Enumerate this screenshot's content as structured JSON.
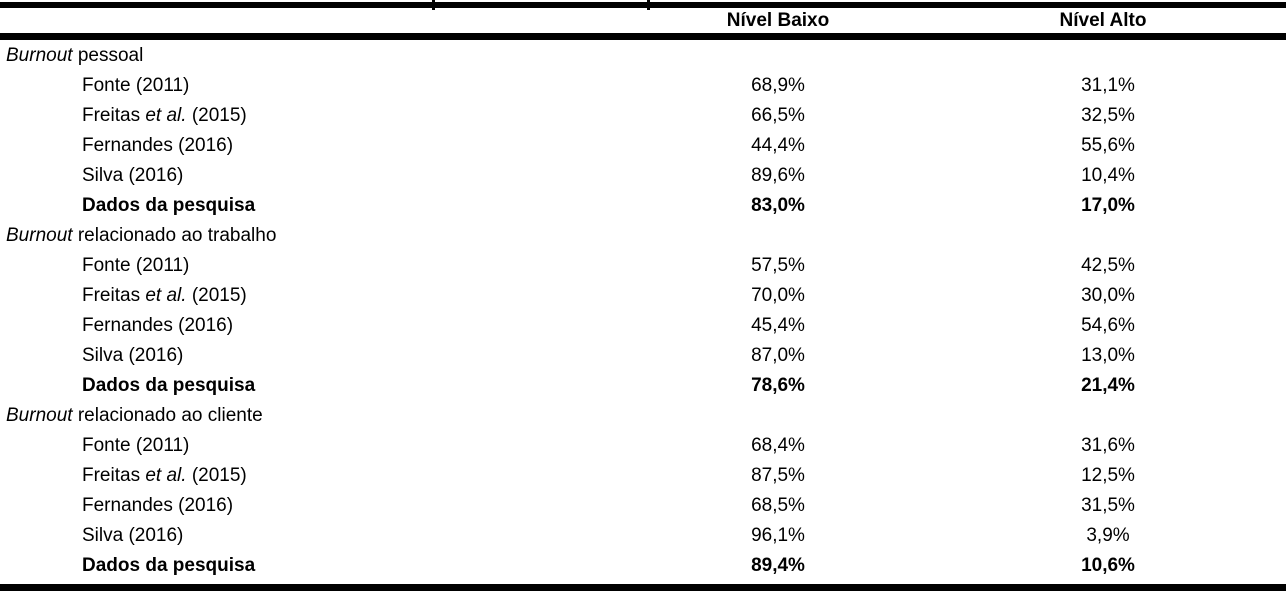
{
  "header": {
    "col_baixo": "Nível Baixo",
    "col_alto": "Nível Alto"
  },
  "sections": [
    {
      "title": {
        "italic": "Burnout",
        "rest": " pessoal"
      },
      "rows": [
        {
          "label": {
            "pre": "Fonte (2011)",
            "italic": "",
            "post": ""
          },
          "baixo": "68,9%",
          "alto": "31,1%"
        },
        {
          "label": {
            "pre": "Freitas ",
            "italic": "et al.",
            "post": " (2015)"
          },
          "baixo": "66,5%",
          "alto": "32,5%"
        },
        {
          "label": {
            "pre": "Fernandes (2016)",
            "italic": "",
            "post": ""
          },
          "baixo": "44,4%",
          "alto": "55,6%"
        },
        {
          "label": {
            "pre": "Silva (2016)",
            "italic": "",
            "post": ""
          },
          "baixo": "89,6%",
          "alto": "10,4%"
        },
        {
          "label": {
            "pre": "Dados da pesquisa",
            "italic": "",
            "post": ""
          },
          "baixo": "83,0%",
          "alto": "17,0%"
        }
      ]
    },
    {
      "title": {
        "italic": "Burnout",
        "rest": " relacionado ao trabalho"
      },
      "rows": [
        {
          "label": {
            "pre": "Fonte (2011)",
            "italic": "",
            "post": ""
          },
          "baixo": "57,5%",
          "alto": "42,5%"
        },
        {
          "label": {
            "pre": "Freitas ",
            "italic": "et al.",
            "post": " (2015)"
          },
          "baixo": "70,0%",
          "alto": "30,0%"
        },
        {
          "label": {
            "pre": "Fernandes (2016)",
            "italic": "",
            "post": ""
          },
          "baixo": "45,4%",
          "alto": "54,6%"
        },
        {
          "label": {
            "pre": "Silva (2016)",
            "italic": "",
            "post": ""
          },
          "baixo": "87,0%",
          "alto": "13,0%"
        },
        {
          "label": {
            "pre": "Dados da pesquisa",
            "italic": "",
            "post": ""
          },
          "baixo": "78,6%",
          "alto": "21,4%"
        }
      ]
    },
    {
      "title": {
        "italic": "Burnout",
        "rest": " relacionado ao cliente"
      },
      "rows": [
        {
          "label": {
            "pre": "Fonte (2011)",
            "italic": "",
            "post": ""
          },
          "baixo": "68,4%",
          "alto": "31,6%"
        },
        {
          "label": {
            "pre": "Freitas ",
            "italic": "et al.",
            "post": " (2015)"
          },
          "baixo": "87,5%",
          "alto": "12,5%"
        },
        {
          "label": {
            "pre": "Fernandes (2016)",
            "italic": "",
            "post": ""
          },
          "baixo": "68,5%",
          "alto": "31,5%"
        },
        {
          "label": {
            "pre": "Silva (2016)",
            "italic": "",
            "post": ""
          },
          "baixo": "96,1%",
          "alto": "3,9%"
        },
        {
          "label": {
            "pre": "Dados da pesquisa",
            "italic": "",
            "post": ""
          },
          "baixo": "89,4%",
          "alto": "10,6%"
        }
      ]
    }
  ],
  "colors": {
    "text": "#000000",
    "background": "#ffffff",
    "rule": "#000000"
  }
}
